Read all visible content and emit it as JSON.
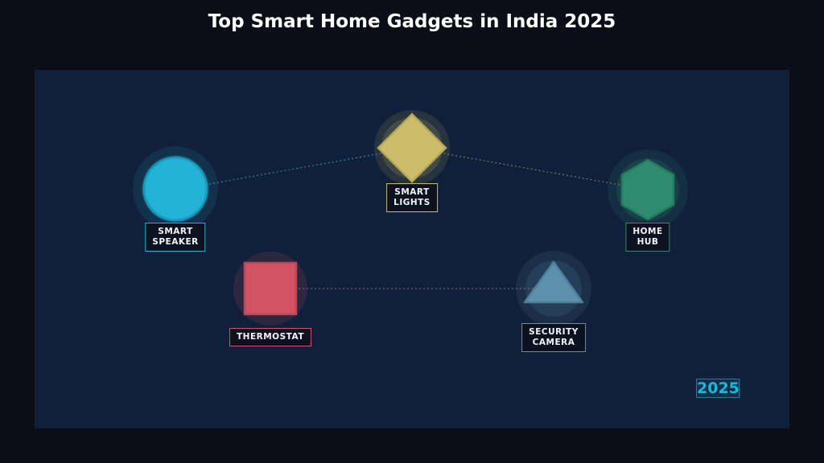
{
  "title": "Top Smart Home Gadgets in India 2025",
  "year_badge": "2025",
  "nodes": {
    "smart_speaker": {
      "label": "SMART\nSPEAKER",
      "shape": "circle",
      "color": "#22b3d6"
    },
    "smart_lights": {
      "label": "SMART\nLIGHTS",
      "shape": "diamond",
      "color": "#cbbd6a"
    },
    "home_hub": {
      "label": "HOME\nHUB",
      "shape": "hexagon",
      "color": "#2e8b6e"
    },
    "thermostat": {
      "label": "THERMOSTAT",
      "shape": "square",
      "color": "#d25464"
    },
    "security_camera": {
      "label": "SECURITY\nCAMERA",
      "shape": "triangle",
      "color": "#5c90ac"
    }
  },
  "connections": [
    {
      "from": "smart_speaker",
      "to": "smart_lights",
      "color": "#3aa0c0"
    },
    {
      "from": "smart_lights",
      "to": "home_hub",
      "color": "#9a8f6a"
    },
    {
      "from": "thermostat",
      "to": "security_camera",
      "color": "#9a6a66"
    }
  ]
}
